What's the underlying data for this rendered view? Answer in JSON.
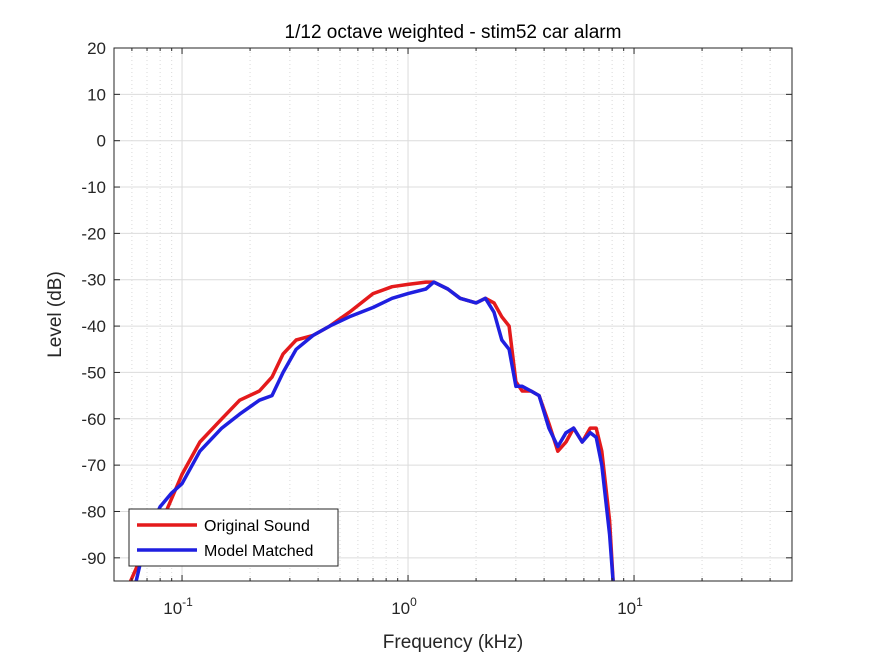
{
  "chart_data": {
    "type": "line",
    "title": "1/12 octave weighted - stim52 car alarm",
    "xlabel": "Frequency (kHz)",
    "ylabel": "Level (dB)",
    "xscale": "log",
    "xlim": [
      0.05,
      50
    ],
    "ylim": [
      -95,
      20
    ],
    "grid": true,
    "minor_grid": true,
    "legend_position": "bottom-left",
    "x_ticks": [
      {
        "value": 0.1,
        "base": "10",
        "exp": "-1"
      },
      {
        "value": 1,
        "base": "10",
        "exp": "0"
      },
      {
        "value": 10,
        "base": "10",
        "exp": "1"
      }
    ],
    "y_ticks": [
      20,
      10,
      0,
      -10,
      -20,
      -30,
      -40,
      -50,
      -60,
      -70,
      -80,
      -90
    ],
    "series": [
      {
        "name": "Original Sound",
        "color": "#e41a1c",
        "x": [
          0.058,
          0.07,
          0.085,
          0.1,
          0.12,
          0.15,
          0.18,
          0.22,
          0.25,
          0.28,
          0.32,
          0.38,
          0.45,
          0.55,
          0.7,
          0.85,
          1.0,
          1.2,
          1.3,
          1.5,
          1.7,
          2.0,
          2.2,
          2.4,
          2.6,
          2.8,
          3.0,
          3.2,
          3.5,
          3.8,
          4.2,
          4.6,
          5.0,
          5.4,
          5.9,
          6.4,
          6.8,
          7.2,
          7.8,
          8.1
        ],
        "y": [
          -96,
          -87,
          -80,
          -72,
          -65,
          -60,
          -56,
          -54,
          -51,
          -46,
          -43,
          -42,
          -40,
          -37,
          -33,
          -31.5,
          -31,
          -30.5,
          -30.5,
          -32,
          -34,
          -35,
          -34,
          -35,
          -38,
          -40,
          -52,
          -54,
          -54,
          -55,
          -61,
          -67,
          -65,
          -62,
          -65,
          -62,
          -62,
          -67,
          -82,
          -96
        ]
      },
      {
        "name": "Model Matched",
        "color": "#1f1fe0",
        "x": [
          0.062,
          0.07,
          0.08,
          0.09,
          0.1,
          0.12,
          0.15,
          0.18,
          0.22,
          0.25,
          0.28,
          0.32,
          0.38,
          0.45,
          0.55,
          0.7,
          0.85,
          1.0,
          1.2,
          1.3,
          1.5,
          1.7,
          2.0,
          2.2,
          2.4,
          2.6,
          2.8,
          3.0,
          3.2,
          3.5,
          3.8,
          4.2,
          4.6,
          5.0,
          5.4,
          5.9,
          6.4,
          6.8,
          7.2,
          7.8,
          8.1
        ],
        "y": [
          -96,
          -85,
          -79,
          -76,
          -74,
          -67,
          -62,
          -59,
          -56,
          -55,
          -50,
          -45,
          -42,
          -40,
          -38,
          -36,
          -34,
          -33,
          -32,
          -30.5,
          -32,
          -34,
          -35,
          -34,
          -37,
          -43,
          -45,
          -53,
          -53,
          -54,
          -55,
          -62,
          -66,
          -63,
          -62,
          -65,
          -63,
          -64,
          -70,
          -85,
          -96
        ]
      }
    ]
  }
}
